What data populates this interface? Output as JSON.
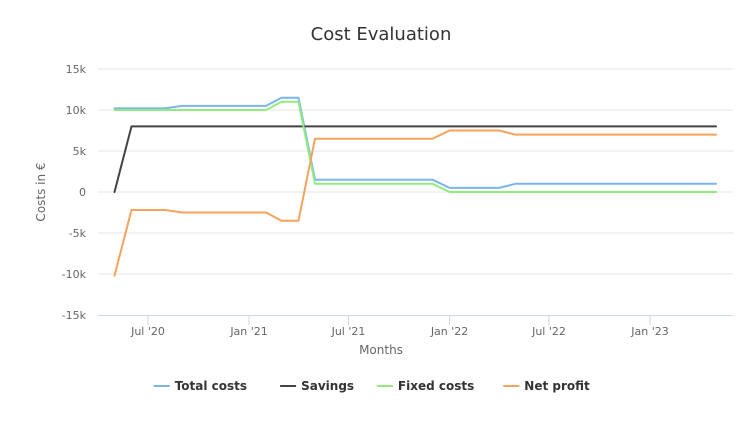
{
  "chart_data": {
    "type": "line",
    "title": "Cost Evaluation",
    "xlabel": "Months",
    "ylabel": "Costs in €",
    "ylim": [
      -15000,
      15000
    ],
    "y_ticks": [
      {
        "value": 15000,
        "label": "15k"
      },
      {
        "value": 10000,
        "label": "10k"
      },
      {
        "value": 5000,
        "label": "5k"
      },
      {
        "value": 0,
        "label": "0"
      },
      {
        "value": -5000,
        "label": "-5k"
      },
      {
        "value": -10000,
        "label": "-10k"
      },
      {
        "value": -15000,
        "label": "-15k"
      }
    ],
    "x_range": [
      "2020-04-01",
      "2023-06-01"
    ],
    "x_ticks": [
      {
        "date": "2020-07-01",
        "label": "Jul '20"
      },
      {
        "date": "2021-01-01",
        "label": "Jan '21"
      },
      {
        "date": "2021-07-01",
        "label": "Jul '21"
      },
      {
        "date": "2022-01-01",
        "label": "Jan '22"
      },
      {
        "date": "2022-07-01",
        "label": "Jul '22"
      },
      {
        "date": "2023-01-01",
        "label": "Jan '23"
      }
    ],
    "x": [
      "2020-05-01",
      "2020-06-01",
      "2020-07-01",
      "2020-08-01",
      "2020-09-01",
      "2020-10-01",
      "2020-11-01",
      "2020-12-01",
      "2021-01-01",
      "2021-02-01",
      "2021-03-01",
      "2021-04-01",
      "2021-05-01",
      "2021-06-01",
      "2021-07-01",
      "2021-08-01",
      "2021-09-01",
      "2021-10-01",
      "2021-11-01",
      "2021-12-01",
      "2022-01-01",
      "2022-02-01",
      "2022-03-01",
      "2022-04-01",
      "2022-05-01",
      "2022-06-01",
      "2022-07-01",
      "2022-08-01",
      "2022-09-01",
      "2022-10-01",
      "2022-11-01",
      "2022-12-01",
      "2023-01-01",
      "2023-02-01",
      "2023-03-01",
      "2023-04-01",
      "2023-05-01"
    ],
    "series": [
      {
        "name": "Total costs",
        "color": "#7cb5ec",
        "values": [
          10200,
          10200,
          10200,
          10200,
          10500,
          10500,
          10500,
          10500,
          10500,
          10500,
          11500,
          11500,
          1500,
          1500,
          1500,
          1500,
          1500,
          1500,
          1500,
          1500,
          500,
          500,
          500,
          500,
          1000,
          1000,
          1000,
          1000,
          1000,
          1000,
          1000,
          1000,
          1000,
          1000,
          1000,
          1000,
          1000
        ]
      },
      {
        "name": "Savings",
        "color": "#434348",
        "values": [
          0,
          8000,
          8000,
          8000,
          8000,
          8000,
          8000,
          8000,
          8000,
          8000,
          8000,
          8000,
          8000,
          8000,
          8000,
          8000,
          8000,
          8000,
          8000,
          8000,
          8000,
          8000,
          8000,
          8000,
          8000,
          8000,
          8000,
          8000,
          8000,
          8000,
          8000,
          8000,
          8000,
          8000,
          8000,
          8000,
          8000
        ]
      },
      {
        "name": "Fixed costs",
        "color": "#90ed7d",
        "values": [
          10000,
          10000,
          10000,
          10000,
          10000,
          10000,
          10000,
          10000,
          10000,
          10000,
          11000,
          11000,
          1000,
          1000,
          1000,
          1000,
          1000,
          1000,
          1000,
          1000,
          0,
          0,
          0,
          0,
          0,
          0,
          0,
          0,
          0,
          0,
          0,
          0,
          0,
          0,
          0,
          0,
          0
        ]
      },
      {
        "name": "Net profit",
        "color": "#f7a35c",
        "values": [
          -10200,
          -2200,
          -2200,
          -2200,
          -2500,
          -2500,
          -2500,
          -2500,
          -2500,
          -2500,
          -3500,
          -3500,
          6500,
          6500,
          6500,
          6500,
          6500,
          6500,
          6500,
          6500,
          7500,
          7500,
          7500,
          7500,
          7000,
          7000,
          7000,
          7000,
          7000,
          7000,
          7000,
          7000,
          7000,
          7000,
          7000,
          7000,
          7000
        ]
      }
    ],
    "grid": true,
    "legend_position": "bottom-center"
  }
}
